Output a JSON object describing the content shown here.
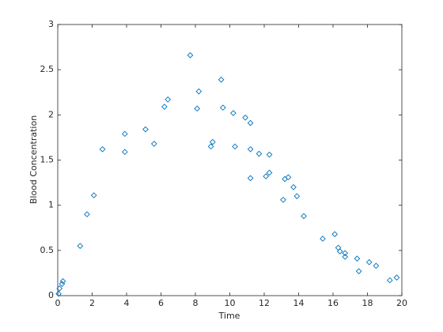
{
  "chart_data": {
    "type": "scatter",
    "xlabel": "Time",
    "ylabel": "Blood Concentration",
    "color": "#0072bd",
    "x": [
      0.05,
      0.1,
      0.25,
      0.3,
      1.3,
      1.7,
      2.1,
      2.6,
      3.9,
      3.9,
      5.1,
      5.6,
      6.2,
      6.4,
      7.7,
      8.1,
      8.2,
      8.9,
      9.0,
      9.5,
      9.6,
      10.2,
      10.3,
      10.9,
      11.2,
      11.2,
      11.2,
      11.7,
      12.1,
      12.3,
      12.3,
      13.1,
      13.2,
      13.4,
      13.7,
      13.9,
      14.3,
      15.4,
      16.1,
      16.3,
      16.4,
      16.7,
      16.7,
      17.4,
      17.5,
      18.1,
      18.5,
      19.3,
      19.7
    ],
    "values": [
      0.02,
      0.08,
      0.13,
      0.16,
      0.55,
      0.9,
      1.11,
      1.62,
      1.79,
      1.59,
      1.84,
      1.68,
      2.09,
      2.17,
      2.66,
      2.07,
      2.26,
      1.65,
      1.7,
      2.39,
      2.08,
      2.02,
      1.65,
      1.97,
      1.91,
      1.62,
      1.3,
      1.57,
      1.32,
      1.56,
      1.36,
      1.06,
      1.29,
      1.31,
      1.2,
      1.1,
      0.88,
      0.63,
      0.68,
      0.53,
      0.49,
      0.47,
      0.43,
      0.41,
      0.27,
      0.37,
      0.33,
      0.17,
      0.2
    ],
    "xlim": [
      0,
      20
    ],
    "xticks": [
      0,
      2,
      4,
      6,
      8,
      10,
      12,
      14,
      16,
      18,
      20
    ],
    "ylim": [
      0,
      3
    ],
    "yticks": [
      0,
      0.5,
      1,
      1.5,
      2,
      2.5,
      3
    ]
  }
}
